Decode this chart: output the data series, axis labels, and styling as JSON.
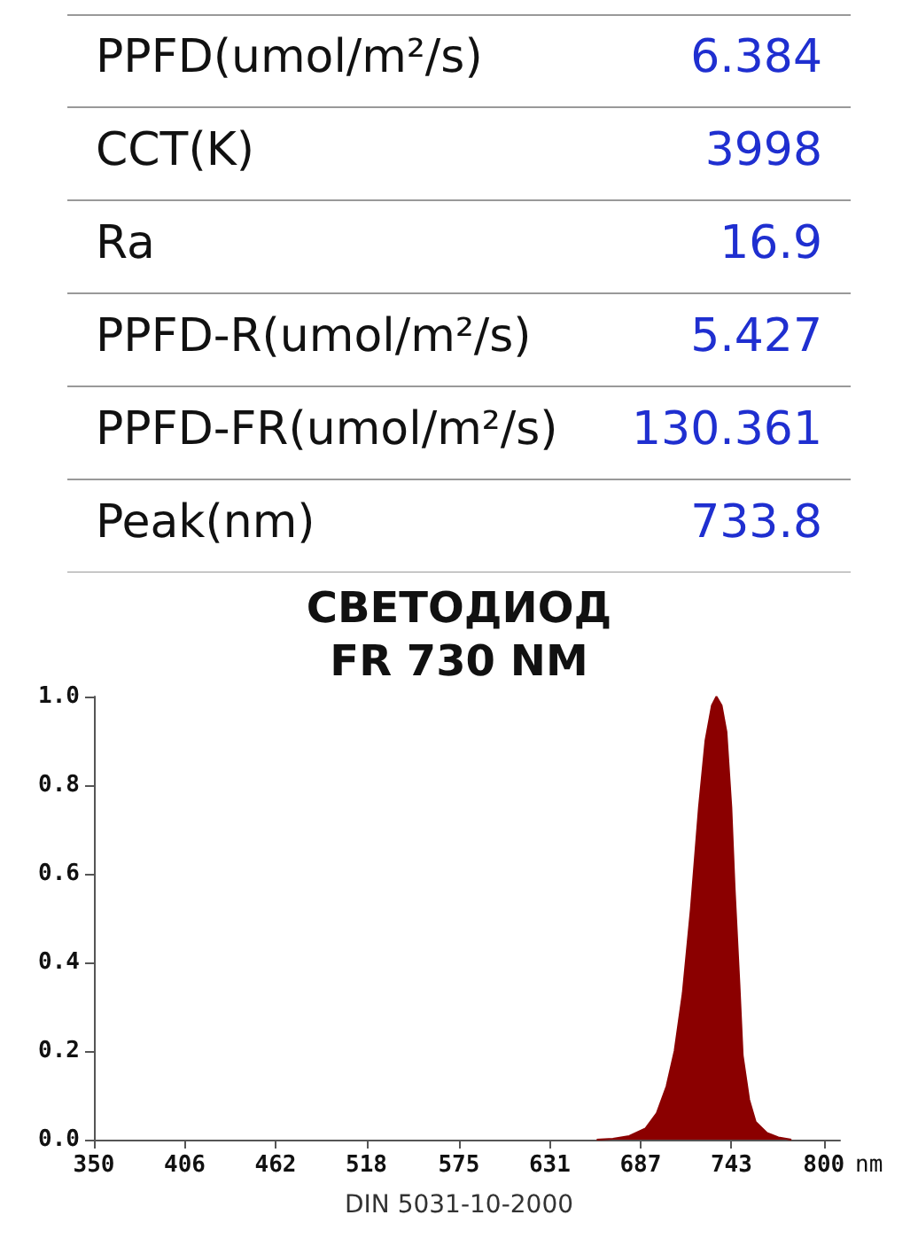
{
  "chart_data": [
    {
      "type": "other",
      "annotations": [
        "PPFD(umol/m²/s)",
        "6.384",
        "CCT(K)",
        "3998",
        "Ra",
        "16.9",
        "PPFD-R(umol/m²/s)",
        "5.427",
        "PPFD-FR(umol/m²/s)",
        "130.361",
        "Peak(nm)",
        "733.8"
      ],
      "color": "#1f2fd0"
    },
    {
      "type": "area",
      "title": "СВЕТОДИОД\nFR 730 NM",
      "xlabel": "nm",
      "annotations": [
        "DIN 5031-10-2000"
      ],
      "color": "#8b0000",
      "x": [
        660,
        670,
        680,
        690,
        697,
        703,
        708,
        713,
        718,
        723,
        727,
        731,
        733.8,
        737,
        740,
        743,
        745,
        748,
        750,
        754,
        758,
        765,
        772,
        780
      ],
      "values": [
        0,
        0.002,
        0.008,
        0.025,
        0.06,
        0.12,
        0.2,
        0.33,
        0.52,
        0.75,
        0.9,
        0.98,
        1.0,
        0.98,
        0.92,
        0.75,
        0.57,
        0.35,
        0.19,
        0.09,
        0.04,
        0.015,
        0.005,
        0
      ],
      "xlim": [
        350,
        810
      ],
      "xticks": [
        350,
        406,
        462,
        518,
        575,
        631,
        687,
        743,
        800
      ],
      "ylim": [
        0,
        1
      ],
      "yticks": [
        {
          "value": 0,
          "label": "0.0"
        },
        0.2,
        0.4,
        0.6,
        0.8,
        {
          "value": 1,
          "label": "1.0"
        }
      ]
    }
  ]
}
